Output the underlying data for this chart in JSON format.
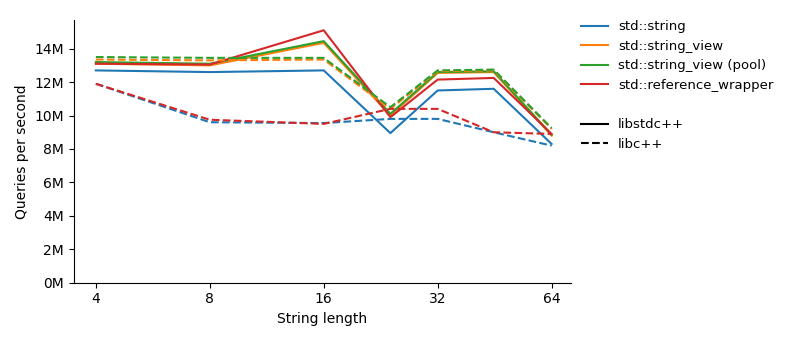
{
  "x": [
    4,
    8,
    16,
    24,
    32,
    45,
    64
  ],
  "series": {
    "string_libstdc": [
      12700000.0,
      12600000.0,
      12700000.0,
      8950000.0,
      11500000.0,
      11600000.0,
      8300000.0
    ],
    "string_view_libstdc": [
      13100000.0,
      13000000.0,
      14350000.0,
      10000000.0,
      12550000.0,
      12600000.0,
      8800000.0
    ],
    "string_view_pool_libstdc": [
      13200000.0,
      13100000.0,
      14450000.0,
      10100000.0,
      12600000.0,
      12650000.0,
      8850000.0
    ],
    "ref_wrapper_libstdc": [
      13100000.0,
      13050000.0,
      15100000.0,
      9900000.0,
      12150000.0,
      12250000.0,
      8900000.0
    ],
    "string_libcpp": [
      11900000.0,
      9600000.0,
      9550000.0,
      9800000.0,
      9800000.0,
      9000000.0,
      8200000.0
    ],
    "string_view_libcpp": [
      13350000.0,
      13300000.0,
      13350000.0,
      10400000.0,
      12650000.0,
      12700000.0,
      9200000.0
    ],
    "string_view_pool_libcpp": [
      13500000.0,
      13450000.0,
      13450000.0,
      10500000.0,
      12700000.0,
      12750000.0,
      9250000.0
    ],
    "ref_wrapper_libcpp": [
      11900000.0,
      9750000.0,
      9500000.0,
      10400000.0,
      10400000.0,
      9000000.0,
      8900000.0
    ]
  },
  "colors": {
    "string": "#1f77b4",
    "string_view": "#ff7f0e",
    "string_view_pool": "#2ca02c",
    "ref_wrapper": "#d62728"
  },
  "ylabel": "Queries per second",
  "xlabel": "String length",
  "yticks": [
    0,
    2000000,
    4000000,
    6000000,
    8000000,
    10000000,
    12000000,
    14000000
  ],
  "ytick_labels": [
    "0M",
    "2M",
    "4M",
    "6M",
    "8M",
    "10M",
    "12M",
    "14M"
  ],
  "xticks": [
    4,
    8,
    16,
    32,
    64
  ],
  "xtick_labels": [
    "4",
    "8",
    "16",
    "32",
    "64"
  ],
  "ylim": [
    0,
    15700000
  ],
  "legend_labels_color": [
    "std::string",
    "std::string_view",
    "std::string_view (pool)",
    "std::reference_wrapper"
  ],
  "legend_labels_style": [
    "libstdc++",
    "libc++"
  ]
}
